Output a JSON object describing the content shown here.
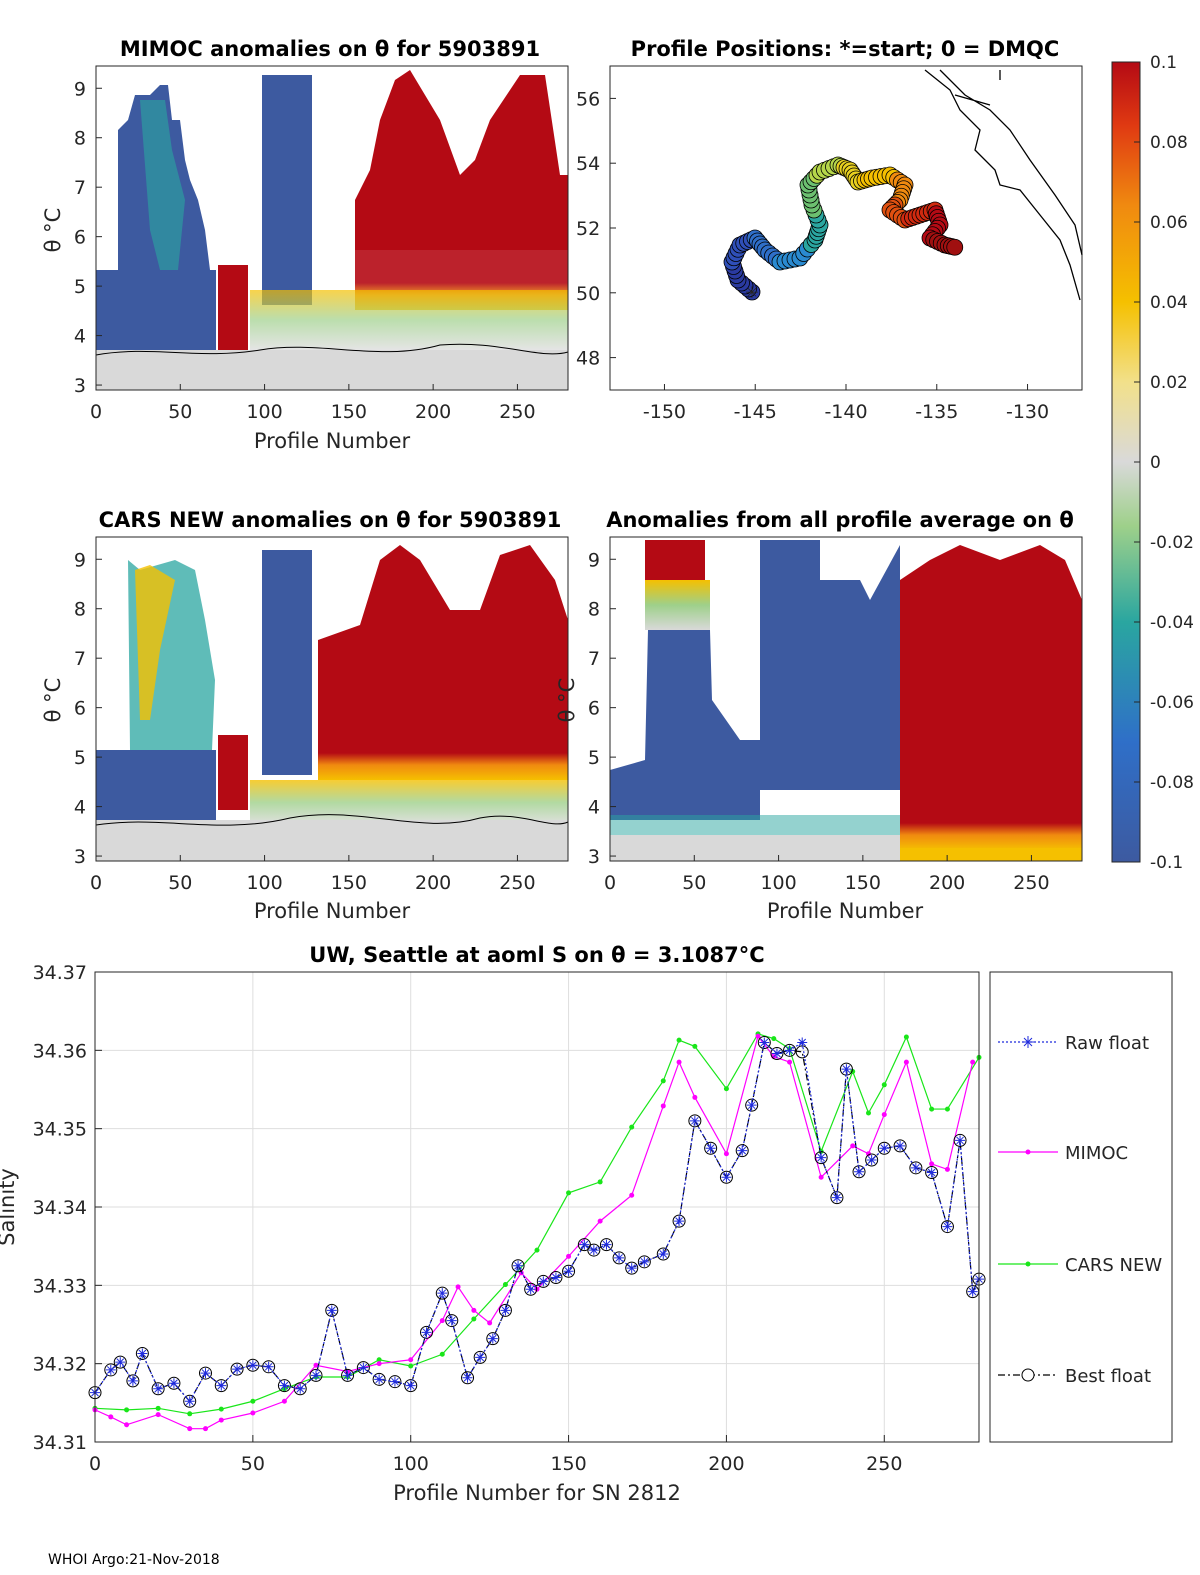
{
  "footer": "WHOI Argo:21-Nov-2018",
  "colors": {
    "low": "#3d5aa0",
    "mid": "#d9d9d9",
    "high": "#b40a14",
    "raw": "#1f2bdc",
    "mimoc": "#ff00ff",
    "cars": "#19e619",
    "best": "#000000"
  },
  "panels": {
    "mimoc": {
      "title": "MIMOC anomalies on θ  for 5903891",
      "xlabel": "Profile Number",
      "ylabel": "θ °C",
      "xticks": [
        "0",
        "50",
        "100",
        "150",
        "200",
        "250"
      ],
      "yticks": [
        "3",
        "4",
        "5",
        "6",
        "7",
        "8",
        "9"
      ]
    },
    "map": {
      "title": "Profile Positions: *=start; 0 = DMQC",
      "xticks": [
        "-150",
        "-145",
        "-140",
        "-135",
        "-130"
      ],
      "yticks": [
        "48",
        "50",
        "52",
        "54",
        "56"
      ]
    },
    "cars": {
      "title": "CARS NEW anomalies on θ for 5903891",
      "xlabel": "Profile Number",
      "ylabel": "θ °C",
      "xticks": [
        "0",
        "50",
        "100",
        "150",
        "200",
        "250"
      ],
      "yticks": [
        "3",
        "4",
        "5",
        "6",
        "7",
        "8",
        "9"
      ]
    },
    "avg": {
      "title": "Anomalies from all profile average on θ",
      "xlabel": "Profile Number",
      "ylabel": "θ °C",
      "xticks": [
        "0",
        "50",
        "100",
        "150",
        "200",
        "250"
      ],
      "yticks": [
        "3",
        "4",
        "5",
        "6",
        "7",
        "8",
        "9"
      ]
    }
  },
  "colorbar": {
    "ticks": [
      "0.1",
      "0.08",
      "0.06",
      "0.04",
      "0.02",
      "0",
      "-0.02",
      "-0.04",
      "-0.06",
      "-0.08",
      "-0.1"
    ]
  },
  "chart_data": {
    "type": "line",
    "title": "UW, Seattle at aoml S on θ = 3.1087°C",
    "xlabel": "Profile Number for SN 2812",
    "ylabel": "Salinity",
    "xlim": [
      0,
      280
    ],
    "ylim": [
      34.31,
      34.37
    ],
    "xticks": [
      "0",
      "50",
      "100",
      "150",
      "200",
      "250"
    ],
    "yticks": [
      "34.31",
      "34.32",
      "34.33",
      "34.34",
      "34.35",
      "34.36",
      "34.37"
    ],
    "legend": [
      "Raw float",
      "MIMOC",
      "CARS NEW",
      "Best float"
    ],
    "series": [
      {
        "name": "CARS NEW",
        "x": [
          0,
          10,
          20,
          30,
          40,
          50,
          60,
          70,
          80,
          90,
          100,
          110,
          120,
          130,
          140,
          150,
          160,
          170,
          180,
          185,
          190,
          200,
          210,
          215,
          220,
          230,
          240,
          245,
          250,
          257,
          265,
          270,
          280
        ],
        "y": [
          34.3143,
          34.3141,
          34.3143,
          34.3136,
          34.3142,
          34.3152,
          34.3168,
          34.3183,
          34.3183,
          34.3205,
          34.3197,
          34.3212,
          34.3257,
          34.3301,
          34.3345,
          34.3418,
          34.3432,
          34.3502,
          34.3561,
          34.3613,
          34.3605,
          34.3551,
          34.3621,
          34.3615,
          34.3602,
          34.3471,
          34.3573,
          34.352,
          34.3556,
          34.3617,
          34.3525,
          34.3525,
          34.3591
        ]
      },
      {
        "name": "MIMOC",
        "x": [
          0,
          5,
          10,
          20,
          30,
          35,
          40,
          50,
          60,
          70,
          80,
          90,
          100,
          110,
          115,
          120,
          125,
          135,
          140,
          150,
          160,
          170,
          180,
          185,
          190,
          200,
          210,
          215,
          220,
          230,
          240,
          245,
          250,
          257,
          265,
          270,
          278
        ],
        "y": [
          34.3141,
          34.3132,
          34.3122,
          34.3135,
          34.3117,
          34.3117,
          34.3128,
          34.3137,
          34.3152,
          34.3198,
          34.319,
          34.32,
          34.3205,
          34.3255,
          34.3298,
          34.3268,
          34.3252,
          34.3316,
          34.3295,
          34.3337,
          34.3382,
          34.3415,
          34.3529,
          34.3585,
          34.354,
          34.3468,
          34.3618,
          34.3592,
          34.3585,
          34.3438,
          34.3478,
          34.3468,
          34.3518,
          34.3585,
          34.3455,
          34.3448,
          34.3585
        ]
      },
      {
        "name": "Best float",
        "x": [
          0,
          5,
          8,
          12,
          15,
          20,
          25,
          30,
          35,
          40,
          45,
          50,
          55,
          60,
          65,
          70,
          75,
          80,
          85,
          90,
          95,
          100,
          105,
          110,
          113,
          118,
          122,
          126,
          130,
          134,
          138,
          142,
          146,
          150,
          155,
          158,
          162,
          166,
          170,
          174,
          180,
          185,
          190,
          195,
          200,
          205,
          208,
          212,
          216,
          220,
          224,
          230,
          235,
          238,
          242,
          246,
          250,
          255,
          260,
          265,
          270,
          274,
          278,
          280
        ],
        "y": [
          34.3163,
          34.3192,
          34.3202,
          34.3178,
          34.3213,
          34.3168,
          34.3175,
          34.3152,
          34.3188,
          34.3172,
          34.3193,
          34.3198,
          34.3196,
          34.3172,
          34.3168,
          34.3185,
          34.3268,
          34.3185,
          34.3195,
          34.318,
          34.3177,
          34.3172,
          34.324,
          34.329,
          34.3255,
          34.3182,
          34.3208,
          34.3232,
          34.3268,
          34.3325,
          34.3295,
          34.3305,
          34.331,
          34.3318,
          34.3352,
          34.3345,
          34.3352,
          34.3335,
          34.3322,
          34.333,
          34.334,
          34.3382,
          34.351,
          34.3475,
          34.3438,
          34.3472,
          34.353,
          34.361,
          34.3596,
          34.36,
          34.3598,
          34.3463,
          34.3412,
          34.3576,
          34.3445,
          34.346,
          34.3475,
          34.3478,
          34.345,
          34.3444,
          34.3375,
          34.3485,
          34.3292,
          34.3308
        ]
      },
      {
        "name": "Raw float",
        "x": [
          0,
          5,
          8,
          12,
          15,
          20,
          25,
          30,
          35,
          40,
          45,
          50,
          55,
          60,
          65,
          70,
          75,
          80,
          85,
          90,
          95,
          100,
          105,
          110,
          113,
          118,
          122,
          126,
          130,
          134,
          138,
          142,
          146,
          150,
          155,
          158,
          162,
          166,
          170,
          174,
          180,
          185,
          190,
          195,
          200,
          205,
          208,
          212,
          216,
          220,
          224,
          230,
          235,
          238,
          242,
          246,
          250,
          255,
          260,
          265,
          270,
          274,
          278,
          280
        ],
        "y": [
          34.3163,
          34.3192,
          34.3202,
          34.3178,
          34.3213,
          34.3168,
          34.3175,
          34.3152,
          34.3188,
          34.3172,
          34.3193,
          34.3198,
          34.3196,
          34.3172,
          34.3168,
          34.3185,
          34.3268,
          34.3185,
          34.3195,
          34.318,
          34.3177,
          34.3172,
          34.324,
          34.329,
          34.3255,
          34.3182,
          34.3208,
          34.3232,
          34.3268,
          34.3325,
          34.3295,
          34.3305,
          34.331,
          34.3318,
          34.3352,
          34.3345,
          34.3352,
          34.3335,
          34.3322,
          34.333,
          34.334,
          34.3382,
          34.351,
          34.3475,
          34.3438,
          34.3472,
          34.353,
          34.361,
          34.3596,
          34.36,
          34.361,
          34.3463,
          34.3412,
          34.3576,
          34.3445,
          34.346,
          34.3475,
          34.3478,
          34.345,
          34.3444,
          34.3375,
          34.3485,
          34.3292,
          34.3308
        ]
      }
    ]
  }
}
